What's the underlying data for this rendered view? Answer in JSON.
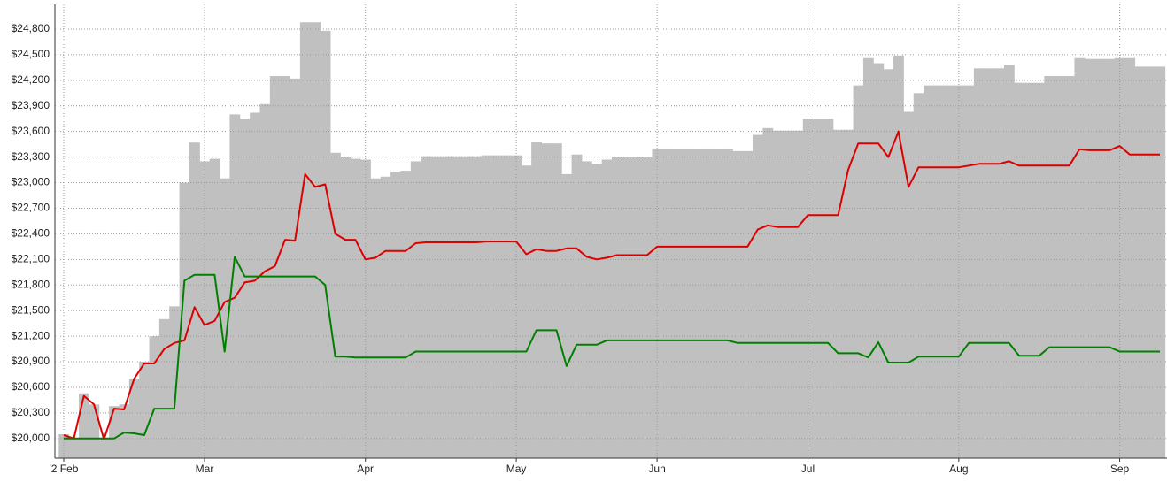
{
  "chart_data": {
    "type": "line",
    "categories": [
      "'2 Feb",
      null,
      null,
      null,
      null,
      null,
      null,
      null,
      null,
      null,
      null,
      null,
      null,
      null,
      "Mar",
      null,
      null,
      null,
      null,
      null,
      null,
      null,
      null,
      null,
      null,
      null,
      null,
      null,
      null,
      null,
      "Apr",
      null,
      null,
      null,
      null,
      null,
      null,
      null,
      null,
      null,
      null,
      null,
      null,
      null,
      null,
      "May",
      null,
      null,
      null,
      null,
      null,
      null,
      null,
      null,
      null,
      null,
      null,
      null,
      null,
      "Jun",
      null,
      null,
      null,
      null,
      null,
      null,
      null,
      null,
      null,
      null,
      null,
      null,
      null,
      null,
      "Jul",
      null,
      null,
      null,
      null,
      null,
      null,
      null,
      null,
      null,
      null,
      null,
      null,
      null,
      null,
      "Aug",
      null,
      null,
      null,
      null,
      null,
      null,
      null,
      null,
      null,
      null,
      null,
      null,
      null,
      null,
      null,
      "Sep",
      null,
      null,
      null,
      null
    ],
    "series": [
      {
        "type": "bar",
        "color": "#c0c0c0",
        "values": [
          20050,
          20000,
          20530,
          20400,
          20000,
          20380,
          20400,
          20700,
          20900,
          21200,
          21400,
          21550,
          23000,
          23470,
          23250,
          23280,
          23050,
          23800,
          23750,
          23820,
          23920,
          24250,
          24250,
          24220,
          24880,
          24880,
          24780,
          23350,
          23300,
          23280,
          23270,
          23050,
          23070,
          23130,
          23140,
          23250,
          23310,
          23310,
          23310,
          23310,
          23310,
          23310,
          23320,
          23320,
          23320,
          23320,
          23200,
          23480,
          23460,
          23460,
          23100,
          23330,
          23250,
          23220,
          23270,
          23300,
          23300,
          23300,
          23300,
          23400,
          23400,
          23400,
          23400,
          23400,
          23400,
          23400,
          23400,
          23370,
          23370,
          23560,
          23640,
          23610,
          23610,
          23610,
          23750,
          23750,
          23750,
          23620,
          23620,
          24140,
          24460,
          24400,
          24330,
          24490,
          23830,
          24050,
          24140,
          24140,
          24140,
          24140,
          24140,
          24340,
          24340,
          24340,
          24380,
          24170,
          24170,
          24170,
          24250,
          24250,
          24250,
          24460,
          24450,
          24450,
          24450,
          24460,
          24460,
          24360,
          24360,
          24360
        ]
      },
      {
        "type": "line",
        "color": "#dd0000",
        "values": [
          20040,
          20000,
          20500,
          20400,
          19990,
          20350,
          20340,
          20700,
          20880,
          20880,
          21050,
          21120,
          21150,
          21540,
          21330,
          21380,
          21600,
          21650,
          21830,
          21850,
          21960,
          22020,
          22330,
          22320,
          23100,
          22950,
          22980,
          22400,
          22330,
          22330,
          22100,
          22120,
          22200,
          22200,
          22200,
          22290,
          22300,
          22300,
          22300,
          22300,
          22300,
          22300,
          22310,
          22310,
          22310,
          22310,
          22160,
          22220,
          22200,
          22200,
          22230,
          22230,
          22130,
          22100,
          22120,
          22150,
          22150,
          22150,
          22150,
          22250,
          22250,
          22250,
          22250,
          22250,
          22250,
          22250,
          22250,
          22250,
          22250,
          22450,
          22500,
          22480,
          22480,
          22480,
          22620,
          22620,
          22620,
          22620,
          23150,
          23460,
          23460,
          23460,
          23300,
          23600,
          22950,
          23180,
          23180,
          23180,
          23180,
          23180,
          23200,
          23220,
          23220,
          23220,
          23250,
          23200,
          23200,
          23200,
          23200,
          23200,
          23200,
          23390,
          23380,
          23380,
          23380,
          23430,
          23330,
          23330,
          23330,
          23330
        ]
      },
      {
        "type": "line",
        "color": "#008000",
        "values": [
          20000,
          20000,
          20000,
          20000,
          20000,
          20000,
          20070,
          20060,
          20040,
          20350,
          20350,
          20350,
          21850,
          21920,
          21920,
          21920,
          21020,
          22130,
          21900,
          21900,
          21900,
          21900,
          21900,
          21900,
          21900,
          21900,
          21800,
          20960,
          20960,
          20950,
          20950,
          20950,
          20950,
          20950,
          20950,
          21020,
          21020,
          21020,
          21020,
          21020,
          21020,
          21020,
          21020,
          21020,
          21020,
          21020,
          21020,
          21270,
          21270,
          21270,
          20850,
          21100,
          21100,
          21100,
          21150,
          21150,
          21150,
          21150,
          21150,
          21150,
          21150,
          21150,
          21150,
          21150,
          21150,
          21150,
          21150,
          21120,
          21120,
          21120,
          21120,
          21120,
          21120,
          21120,
          21120,
          21120,
          21120,
          21000,
          21000,
          21000,
          20950,
          21130,
          20890,
          20890,
          20890,
          20960,
          20960,
          20960,
          20960,
          20960,
          21120,
          21120,
          21120,
          21120,
          21120,
          20970,
          20970,
          20970,
          21070,
          21070,
          21070,
          21070,
          21070,
          21070,
          21070,
          21020,
          21020,
          21020,
          21020,
          21020
        ]
      }
    ],
    "ylim": [
      19770,
      25090
    ],
    "yticks": [
      {
        "value": 20000,
        "label": "$20,000"
      },
      {
        "value": 20300,
        "label": "$20,300"
      },
      {
        "value": 20600,
        "label": "$20,600"
      },
      {
        "value": 20900,
        "label": "$20,900"
      },
      {
        "value": 21200,
        "label": "$21,200"
      },
      {
        "value": 21500,
        "label": "$21,500"
      },
      {
        "value": 21800,
        "label": "$21,800"
      },
      {
        "value": 22100,
        "label": "$22,100"
      },
      {
        "value": 22400,
        "label": "$22,400"
      },
      {
        "value": 22700,
        "label": "$22,700"
      },
      {
        "value": 23000,
        "label": "$23,000"
      },
      {
        "value": 23300,
        "label": "$23,300"
      },
      {
        "value": 23600,
        "label": "$23,600"
      },
      {
        "value": 23900,
        "label": "$23,900"
      },
      {
        "value": 24200,
        "label": "$24,200"
      },
      {
        "value": 24500,
        "label": "$24,500"
      },
      {
        "value": 24800,
        "label": "$24,800"
      }
    ],
    "grid": true
  }
}
